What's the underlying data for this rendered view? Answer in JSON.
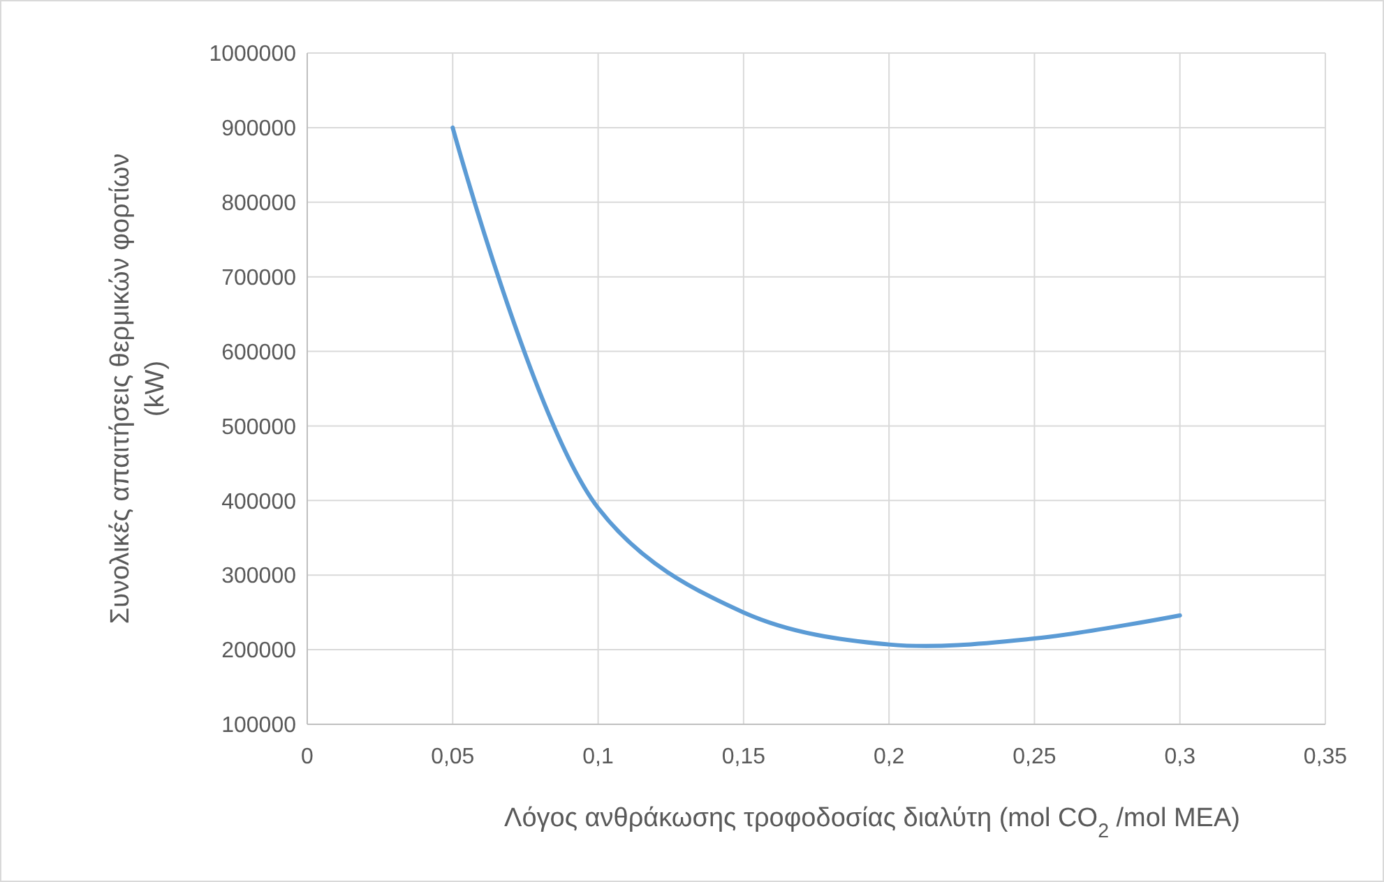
{
  "chart_data": {
    "type": "line",
    "xlabel": "Λόγος ανθράκωσης τροφοδοσίας διαλύτη (mol CO$_{2}$ /mol MEA)",
    "ylabel": "Συνολικές απαιτήσεις θερμικών φορτίων\n(kW)",
    "x": [
      0.05,
      0.1,
      0.15,
      0.2,
      0.25,
      0.3
    ],
    "series": [
      {
        "color": "#5b9bd5",
        "values": [
          900000,
          390000,
          250000,
          207000,
          215000,
          246000
        ]
      }
    ],
    "xlim": [
      0,
      0.35
    ],
    "xticks": [
      0,
      {
        "value": 0.05,
        "label": "0,05"
      },
      {
        "value": 0.1,
        "label": "0,1"
      },
      {
        "value": 0.15,
        "label": "0,15"
      },
      {
        "value": 0.2,
        "label": "0,2"
      },
      {
        "value": 0.25,
        "label": "0,25"
      },
      {
        "value": 0.3,
        "label": "0,3"
      },
      {
        "value": 0.35,
        "label": "0,35"
      }
    ],
    "ylim": [
      100000,
      1000000
    ],
    "yticks": [
      100000,
      200000,
      300000,
      400000,
      500000,
      600000,
      700000,
      800000,
      900000,
      1000000
    ],
    "grid": true,
    "marker": "none",
    "line_style": "solid"
  }
}
